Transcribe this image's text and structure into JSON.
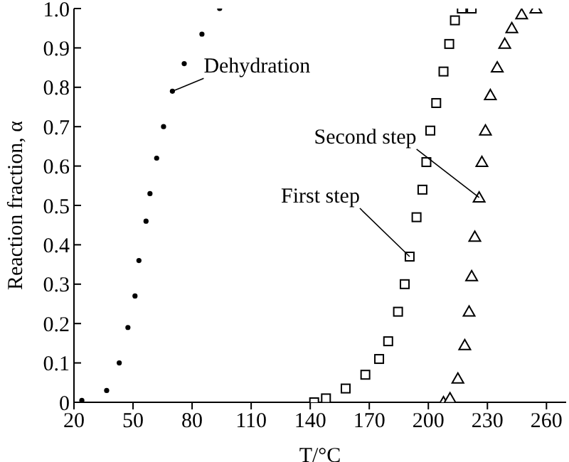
{
  "chart_data": {
    "type": "scatter",
    "xlabel": "T/°C",
    "ylabel": "Reaction fraction, α",
    "xlim": [
      20,
      270
    ],
    "xticks": [
      20,
      50,
      80,
      110,
      140,
      170,
      200,
      230,
      260
    ],
    "ylim": [
      0,
      1
    ],
    "yticks": [
      0,
      0.1,
      0.2,
      0.3,
      0.4,
      0.5,
      0.6,
      0.7,
      0.8,
      0.9,
      {
        "value": 1,
        "label": "1.0"
      }
    ],
    "grid": false,
    "legend": false,
    "series": [
      {
        "color": "#000000",
        "marker": "circle",
        "x": [
          24,
          36.6,
          43,
          47.4,
          51,
          53,
          56.6,
          58.6,
          62,
          65.5,
          70,
          76,
          85,
          94
        ],
        "values": [
          0.005,
          0.03,
          0.1,
          0.19,
          0.27,
          0.36,
          0.46,
          0.53,
          0.62,
          0.7,
          0.79,
          0.86,
          0.935,
          1.0
        ]
      },
      {
        "color": "#000000",
        "marker": "square",
        "x": [
          142,
          148,
          158,
          168,
          175,
          179.6,
          184.6,
          188,
          190.5,
          194,
          197,
          199,
          201,
          204,
          207.7,
          210.6,
          213.5,
          217,
          222
        ],
        "values": [
          0,
          0.01,
          0.035,
          0.07,
          0.11,
          0.155,
          0.23,
          0.3,
          0.37,
          0.47,
          0.54,
          0.61,
          0.69,
          0.76,
          0.84,
          0.91,
          0.97,
          1.0,
          1.0
        ]
      },
      {
        "color": "#000000",
        "marker": "triangle",
        "x": [
          207.7,
          211,
          215,
          218.5,
          220.7,
          222,
          223.6,
          225.8,
          227.2,
          229,
          231.5,
          235,
          238.8,
          242.4,
          247.4,
          254.6
        ],
        "values": [
          0,
          0.01,
          0.06,
          0.145,
          0.23,
          0.32,
          0.42,
          0.52,
          0.61,
          0.69,
          0.78,
          0.85,
          0.91,
          0.95,
          0.985,
          1.0
        ]
      }
    ],
    "annotations": [
      {
        "text": "Dehydration",
        "x": 70,
        "y": 0.79
      },
      {
        "text": "Second step",
        "x": 225.8,
        "y": 0.52
      },
      {
        "text": "First step",
        "x": 190.5,
        "y": 0.37
      }
    ]
  }
}
